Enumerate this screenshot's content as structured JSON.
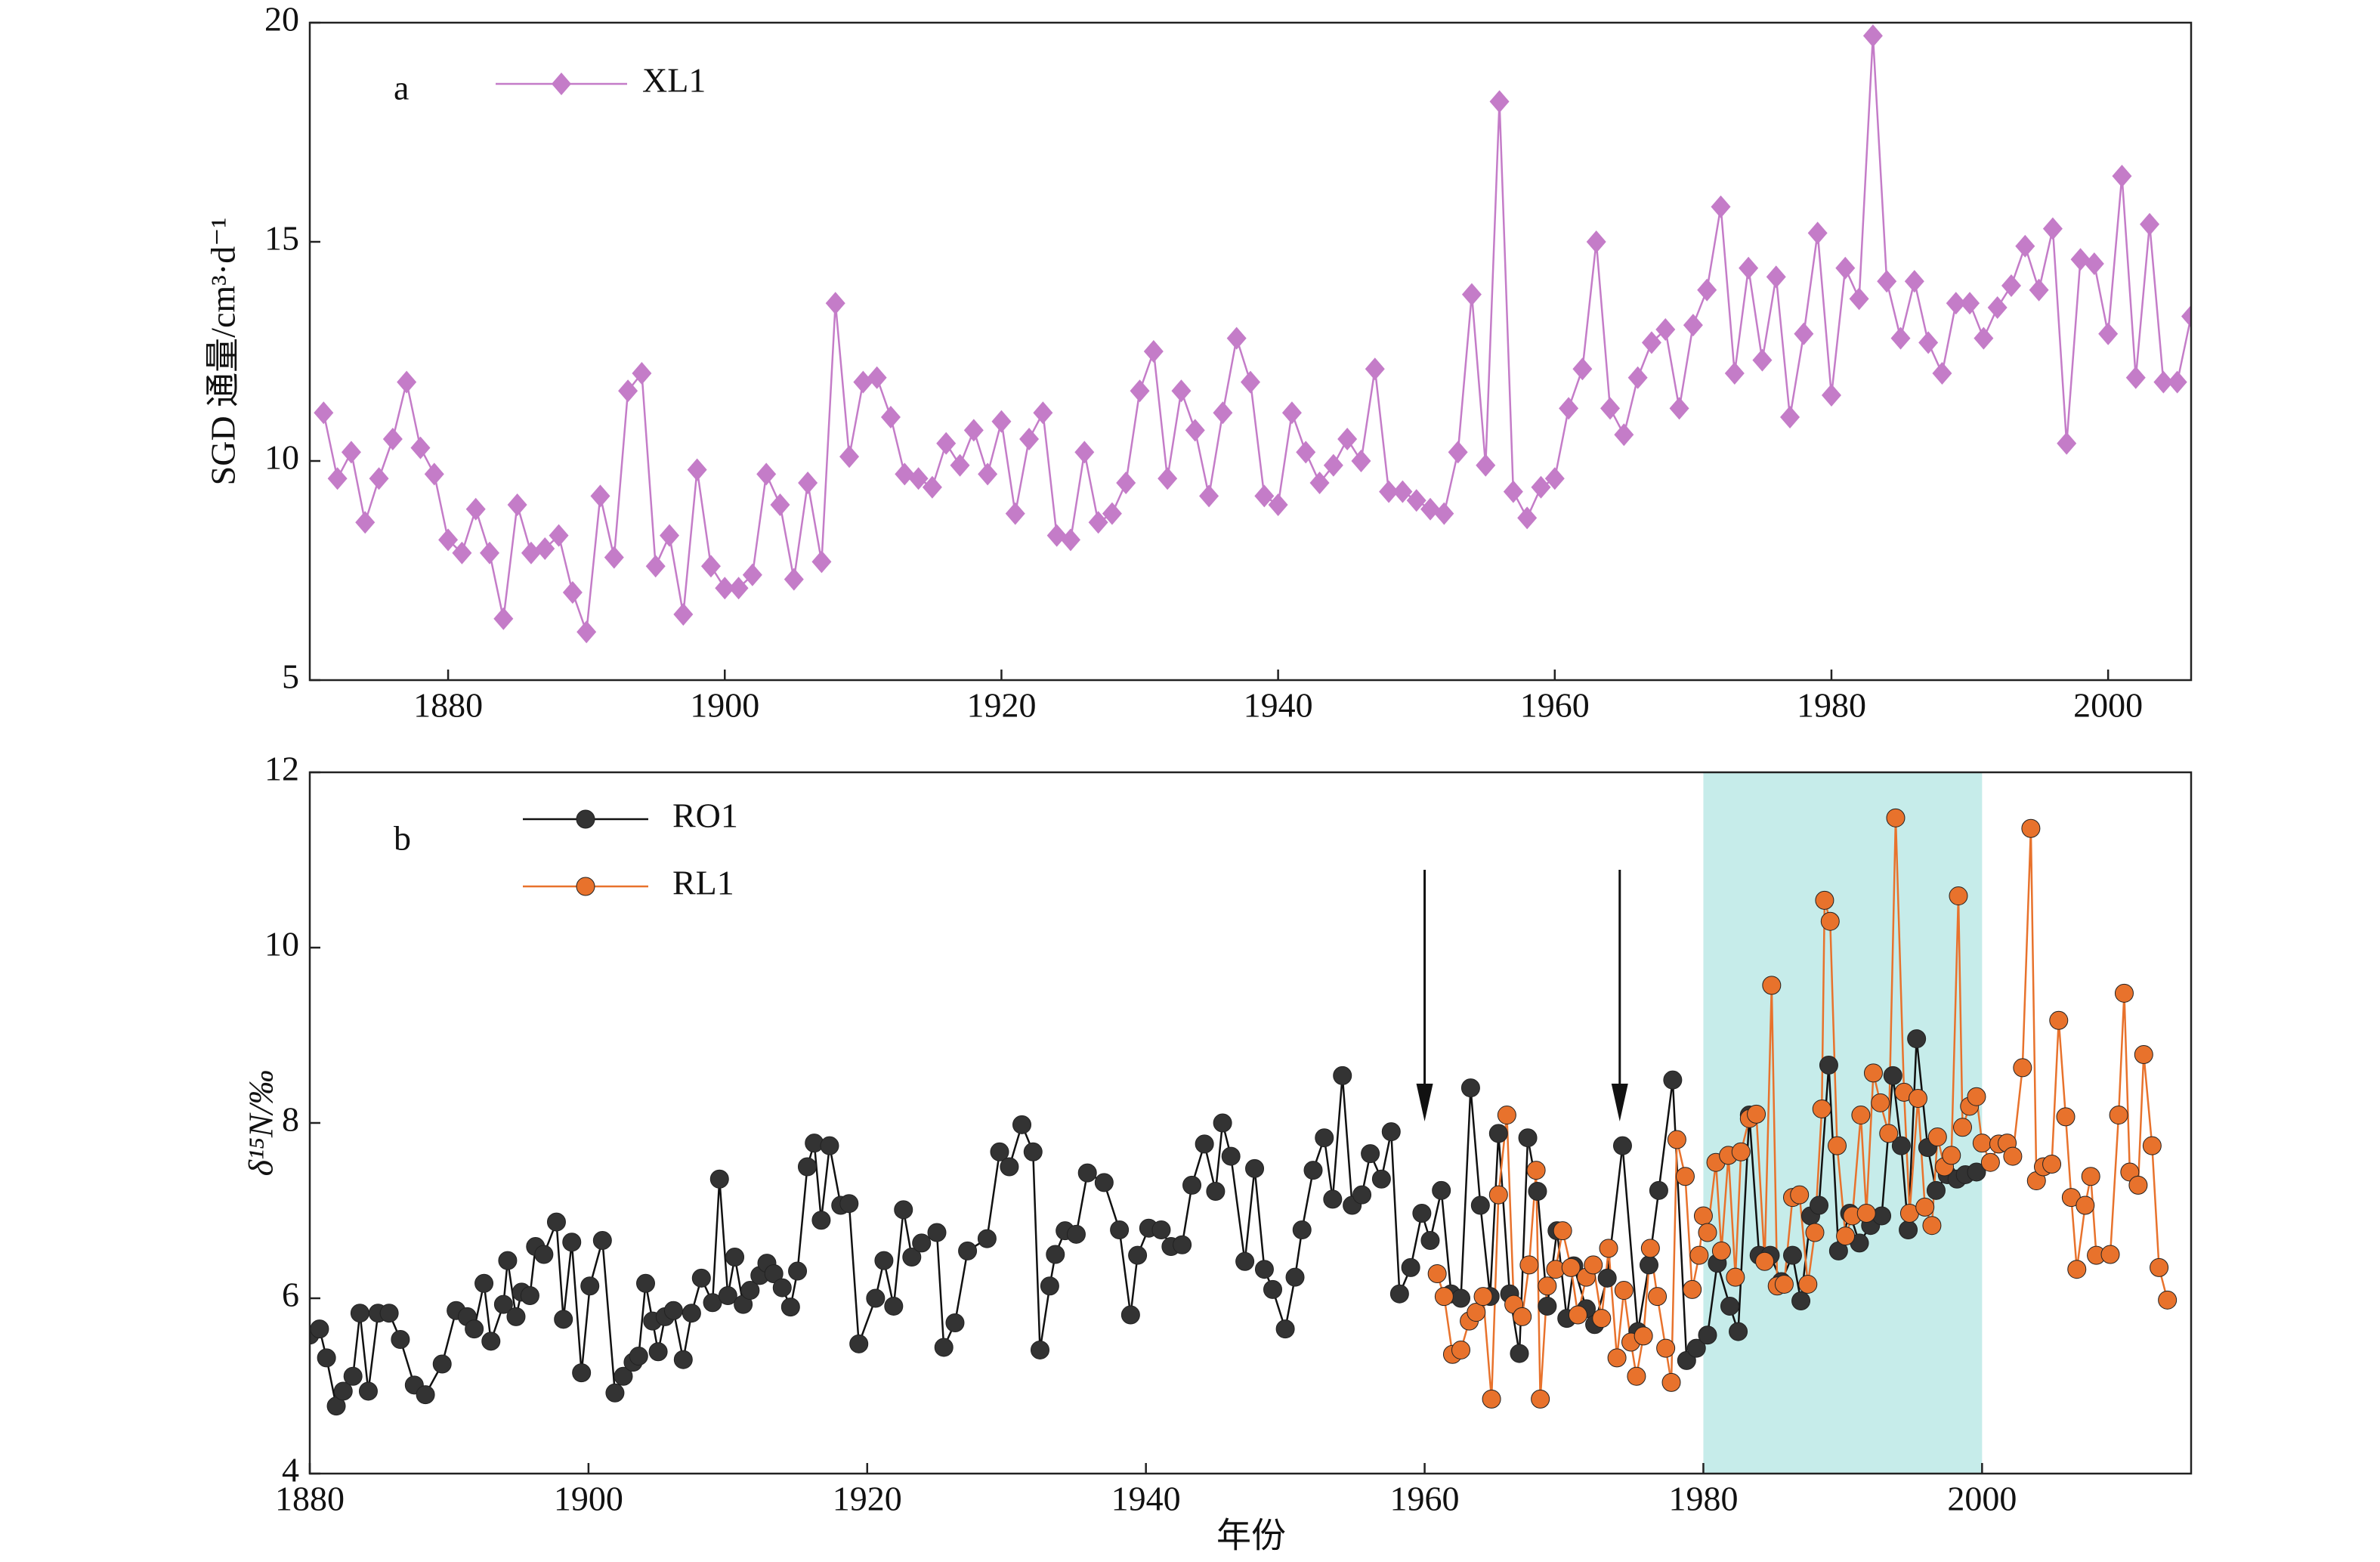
{
  "chart_data": [
    {
      "type": "line",
      "panel_label": "a",
      "ylabel": "SGD 通量/cm³·d⁻¹",
      "xlim": [
        1870,
        2006
      ],
      "xticks": [
        1880,
        1900,
        1920,
        1940,
        1960,
        1980,
        2000
      ],
      "ylim": [
        5,
        20
      ],
      "yticks": [
        5,
        10,
        15,
        20
      ],
      "series": [
        {
          "name": "XL1",
          "color": "#c47cc8",
          "marker": "diamond",
          "x": [
            1871,
            1872,
            1873,
            1874,
            1875,
            1876,
            1877,
            1878,
            1879,
            1880,
            1881,
            1882,
            1883,
            1884,
            1885,
            1886,
            1887,
            1888,
            1889,
            1890,
            1891,
            1892,
            1893,
            1894,
            1895,
            1896,
            1897,
            1898,
            1899,
            1900,
            1901,
            1902,
            1903,
            1904,
            1905,
            1906,
            1907,
            1908,
            1909,
            1910,
            1911,
            1912,
            1913,
            1914,
            1915,
            1916,
            1917,
            1918,
            1919,
            1920,
            1921,
            1922,
            1923,
            1924,
            1925,
            1926,
            1927,
            1928,
            1929,
            1930,
            1931,
            1932,
            1933,
            1934,
            1935,
            1936,
            1937,
            1938,
            1939,
            1940,
            1941,
            1942,
            1943,
            1944,
            1945,
            1946,
            1947,
            1948,
            1949,
            1950,
            1951,
            1952,
            1953,
            1954,
            1955,
            1956,
            1957,
            1958,
            1959,
            1960,
            1961,
            1962,
            1963,
            1964,
            1965,
            1966,
            1967,
            1968,
            1969,
            1970,
            1971,
            1972,
            1973,
            1974,
            1975,
            1976,
            1977,
            1978,
            1979,
            1980,
            1981,
            1982,
            1983,
            1984,
            1985,
            1986,
            1987,
            1988,
            1989,
            1990,
            1991,
            1992,
            1993,
            1994,
            1995,
            1996,
            1997,
            1998,
            1999,
            2000,
            2001,
            2002,
            2003,
            2004,
            2005,
            2006
          ],
          "values": [
            11.1,
            9.6,
            10.2,
            8.6,
            9.6,
            10.5,
            11.8,
            10.3,
            9.7,
            8.2,
            7.9,
            8.9,
            7.9,
            6.4,
            9.0,
            7.9,
            8.0,
            8.3,
            7.0,
            6.1,
            9.2,
            7.8,
            11.6,
            12.0,
            7.6,
            8.3,
            6.5,
            9.8,
            7.6,
            7.1,
            7.1,
            7.4,
            9.7,
            9.0,
            7.3,
            9.5,
            7.7,
            13.6,
            10.1,
            11.8,
            11.9,
            11.0,
            9.7,
            9.6,
            9.4,
            10.4,
            9.9,
            10.7,
            9.7,
            10.9,
            8.8,
            10.5,
            11.1,
            8.3,
            8.2,
            10.2,
            8.6,
            8.8,
            9.5,
            11.6,
            12.5,
            9.6,
            11.6,
            10.7,
            9.2,
            11.1,
            12.8,
            11.8,
            9.2,
            9.0,
            11.1,
            10.2,
            9.5,
            9.9,
            10.5,
            10.0,
            12.1,
            9.3,
            9.3,
            9.1,
            8.9,
            8.8,
            10.2,
            13.8,
            9.9,
            18.2,
            9.3,
            8.7,
            9.4,
            9.6,
            11.2,
            12.1,
            15.0,
            11.2,
            10.6,
            11.9,
            12.7,
            13.0,
            11.2,
            13.1,
            13.9,
            15.8,
            12.0,
            14.4,
            12.3,
            14.2,
            11.0,
            12.9,
            15.2,
            11.5,
            14.4,
            13.7,
            19.7,
            14.1,
            12.8,
            14.1,
            12.7,
            12.0,
            13.6,
            13.6,
            12.8,
            13.5,
            14.0,
            14.9,
            13.9,
            15.3,
            10.4,
            14.6,
            14.5,
            12.9,
            16.5,
            11.9,
            15.4,
            11.8,
            11.8,
            13.3
          ]
        }
      ]
    },
    {
      "type": "line",
      "panel_label": "b",
      "ylabel": "δ¹⁵N/‰",
      "xlabel": "年份",
      "xlim": [
        1880,
        2015
      ],
      "xticks": [
        1880,
        1900,
        1920,
        1940,
        1960,
        1980,
        2000
      ],
      "ylim": [
        4,
        12
      ],
      "yticks": [
        4,
        6,
        8,
        10,
        12
      ],
      "shaded_span": [
        1980,
        2000
      ],
      "shade_color": "#c6ecea",
      "arrows": [
        1960,
        1974
      ],
      "series": [
        {
          "name": "RO1",
          "color": "#111111",
          "marker_color": "#333333",
          "label_color": "#111111",
          "marker": "circle",
          "x": [
            1880.0,
            1880.7,
            1881.2,
            1881.9,
            1882.4,
            1883.1,
            1883.6,
            1884.2,
            1884.9,
            1885.7,
            1886.5,
            1887.5,
            1888.3,
            1889.5,
            1890.5,
            1891.3,
            1891.8,
            1892.5,
            1893.0,
            1893.9,
            1894.2,
            1894.8,
            1895.2,
            1895.8,
            1896.2,
            1896.8,
            1897.7,
            1898.2,
            1898.8,
            1899.5,
            1900.1,
            1901.0,
            1901.9,
            1902.5,
            1903.2,
            1903.6,
            1904.1,
            1904.6,
            1905.0,
            1905.5,
            1906.1,
            1906.8,
            1907.4,
            1908.1,
            1908.9,
            1909.4,
            1910.0,
            1910.5,
            1911.1,
            1911.6,
            1912.3,
            1912.8,
            1913.3,
            1913.9,
            1914.5,
            1915.0,
            1915.7,
            1916.2,
            1916.7,
            1917.3,
            1918.1,
            1918.7,
            1919.4,
            1920.6,
            1921.2,
            1921.9,
            1922.6,
            1923.2,
            1923.9,
            1925.0,
            1925.5,
            1926.3,
            1927.2,
            1928.6,
            1929.5,
            1930.2,
            1931.1,
            1931.9,
            1932.4,
            1933.1,
            1933.5,
            1934.2,
            1935.0,
            1935.8,
            1937.0,
            1938.1,
            1938.9,
            1939.4,
            1940.2,
            1941.1,
            1941.8,
            1942.6,
            1943.3,
            1944.2,
            1945.0,
            1945.5,
            1946.1,
            1947.1,
            1947.8,
            1948.5,
            1949.1,
            1950.0,
            1950.7,
            1951.2,
            1952.0,
            1952.8,
            1953.4,
            1954.1,
            1954.8,
            1955.5,
            1956.1,
            1956.9,
            1957.6,
            1958.2,
            1959.0,
            1959.8,
            1960.4,
            1961.2,
            1961.9,
            1962.6,
            1963.3,
            1964.0,
            1964.7,
            1965.3,
            1966.1,
            1966.8,
            1967.4,
            1968.1,
            1968.8,
            1969.5,
            1970.2,
            1970.7,
            1971.6,
            1972.2,
            1973.1,
            1974.2,
            1975.3,
            1976.1,
            1976.8,
            1977.8,
            1978.8,
            1979.5,
            1980.3,
            1981.0,
            1981.9,
            1982.5,
            1983.3,
            1984.0,
            1984.8,
            1985.6,
            1986.4,
            1987.0,
            1987.7,
            1988.3,
            1989.0,
            1989.7,
            1990.5,
            1991.2,
            1992.0,
            1992.8,
            1993.6,
            1994.2,
            1994.7,
            1995.3,
            1996.1,
            1996.7,
            1997.5,
            1998.2,
            1998.8,
            1999.6
          ],
          "values": [
            5.58,
            5.65,
            5.32,
            4.77,
            4.94,
            5.11,
            5.83,
            4.94,
            5.83,
            5.83,
            5.53,
            5.01,
            4.9,
            5.25,
            5.86,
            5.79,
            5.65,
            6.17,
            5.51,
            5.93,
            6.43,
            5.79,
            6.07,
            6.03,
            6.59,
            6.5,
            6.87,
            5.76,
            6.64,
            5.15,
            6.14,
            6.66,
            4.92,
            5.11,
            5.27,
            5.34,
            6.17,
            5.74,
            5.39,
            5.79,
            5.86,
            5.3,
            5.83,
            6.23,
            5.95,
            7.36,
            6.03,
            6.47,
            5.93,
            6.09,
            6.26,
            6.4,
            6.28,
            6.12,
            5.9,
            6.31,
            7.5,
            7.77,
            6.89,
            7.74,
            7.06,
            7.08,
            5.48,
            6.0,
            6.43,
            5.91,
            7.01,
            6.47,
            6.63,
            6.75,
            5.44,
            5.72,
            6.54,
            6.68,
            7.67,
            7.5,
            7.98,
            7.67,
            5.41,
            6.14,
            6.5,
            6.77,
            6.73,
            7.43,
            7.32,
            6.78,
            5.81,
            6.49,
            6.8,
            6.78,
            6.59,
            6.61,
            7.29,
            7.76,
            7.22,
            8.0,
            7.62,
            6.42,
            7.48,
            6.33,
            6.1,
            5.65,
            6.24,
            6.78,
            7.46,
            7.83,
            7.13,
            8.54,
            7.06,
            7.18,
            7.65,
            7.36,
            7.9,
            6.05,
            6.35,
            6.97,
            6.66,
            7.23,
            6.05,
            6.0,
            8.4,
            7.06,
            6.02,
            7.88,
            6.05,
            5.37,
            7.83,
            7.22,
            5.91,
            6.77,
            5.77,
            6.37,
            5.88,
            5.7,
            6.23,
            7.74,
            5.62,
            6.38,
            7.23,
            8.49,
            5.29,
            5.43,
            5.58,
            6.4,
            5.91,
            5.62,
            8.09,
            6.49,
            6.49,
            6.19,
            6.49,
            5.97,
            6.94,
            7.06,
            8.66,
            6.54,
            6.97,
            6.63,
            6.83,
            6.94,
            8.54,
            7.74,
            6.78,
            8.96,
            7.72,
            7.23,
            7.41,
            7.36,
            7.41,
            7.44
          ]
        },
        {
          "name": "RL1",
          "color": "#e8722c",
          "marker_color": "#e8722c",
          "label_color": "#e8722c",
          "marker": "circle",
          "x": [
            1960.9,
            1961.4,
            1962.0,
            1962.6,
            1963.2,
            1963.7,
            1964.2,
            1964.8,
            1965.3,
            1965.9,
            1966.4,
            1967.0,
            1967.5,
            1968.0,
            1968.3,
            1968.8,
            1969.4,
            1969.9,
            1970.5,
            1971.0,
            1971.6,
            1972.1,
            1972.7,
            1973.2,
            1973.8,
            1974.3,
            1974.8,
            1975.2,
            1975.7,
            1976.2,
            1976.7,
            1977.3,
            1977.7,
            1978.1,
            1978.7,
            1979.2,
            1979.7,
            1980.0,
            1980.3,
            1980.9,
            1981.3,
            1981.8,
            1982.3,
            1982.7,
            1983.3,
            1983.8,
            1984.4,
            1984.9,
            1985.3,
            1985.8,
            1986.4,
            1986.9,
            1987.5,
            1988.0,
            1988.5,
            1988.7,
            1989.1,
            1989.6,
            1990.2,
            1990.7,
            1991.3,
            1991.7,
            1992.2,
            1992.7,
            1993.3,
            1993.8,
            1994.4,
            1994.8,
            1995.4,
            1995.9,
            1996.4,
            1996.8,
            1997.3,
            1997.8,
            1998.3,
            1998.6,
            1999.1,
            1999.6,
            2000.0,
            2000.6,
            2001.2,
            2001.8,
            2002.2,
            2002.9,
            2003.5,
            2003.9,
            2004.4,
            2005.0,
            2005.5,
            2006.0,
            2006.4,
            2006.8,
            2007.4,
            2007.8,
            2008.2,
            2009.2,
            2009.8,
            2010.2,
            2010.6,
            2011.2,
            2011.6,
            2012.2,
            2012.7,
            2013.3
          ],
          "values": [
            6.28,
            6.02,
            5.36,
            5.41,
            5.74,
            5.84,
            6.02,
            4.85,
            7.18,
            8.09,
            5.93,
            5.79,
            6.38,
            7.46,
            4.85,
            6.14,
            6.33,
            6.77,
            6.35,
            5.81,
            6.24,
            6.38,
            5.77,
            6.57,
            5.32,
            6.09,
            5.5,
            5.11,
            5.57,
            6.57,
            6.02,
            5.43,
            5.04,
            7.81,
            7.39,
            6.1,
            6.49,
            6.94,
            6.75,
            7.55,
            6.54,
            7.63,
            6.24,
            7.67,
            8.05,
            8.1,
            6.42,
            9.57,
            6.14,
            6.16,
            7.15,
            7.18,
            6.16,
            6.75,
            8.16,
            10.54,
            10.3,
            7.74,
            6.71,
            6.94,
            8.09,
            6.97,
            8.57,
            8.23,
            7.88,
            11.48,
            8.35,
            6.97,
            8.28,
            7.04,
            6.83,
            7.84,
            7.5,
            7.63,
            10.59,
            7.95,
            8.19,
            8.3,
            7.77,
            7.55,
            7.76,
            7.77,
            7.62,
            8.63,
            11.36,
            7.34,
            7.5,
            7.53,
            9.17,
            8.07,
            7.15,
            6.33,
            7.06,
            7.39,
            6.49,
            6.5,
            8.09,
            9.48,
            7.44,
            7.29,
            8.78,
            7.74,
            6.35,
            5.98
          ]
        }
      ]
    }
  ]
}
